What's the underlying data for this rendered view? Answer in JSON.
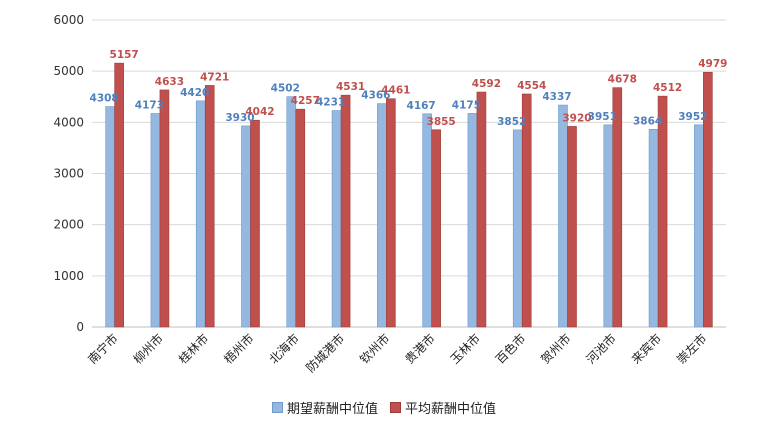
{
  "chart_data": {
    "type": "bar",
    "categories": [
      "南宁市",
      "柳州市",
      "桂林市",
      "梧州市",
      "北海市",
      "防城港市",
      "钦州市",
      "贵港市",
      "玉林市",
      "百色市",
      "贺州市",
      "河池市",
      "来宾市",
      "崇左市"
    ],
    "series": [
      {
        "name": "期望薪酬中位值",
        "color": "#95b8e0",
        "values": [
          4308,
          4173,
          4420,
          3930,
          4502,
          4231,
          4366,
          4167,
          4175,
          3852,
          4337,
          3951,
          3864,
          3952
        ]
      },
      {
        "name": "平均薪酬中位值",
        "color": "#c0504d",
        "values": [
          5157,
          4633,
          4721,
          4042,
          4257,
          4531,
          4461,
          3855,
          4592,
          4554,
          3920,
          4678,
          4512,
          4979
        ]
      }
    ],
    "ylim": [
      0,
      6000
    ],
    "yticks": [
      0,
      1000,
      2000,
      3000,
      4000,
      5000,
      6000
    ],
    "grid": true,
    "legend_position": "bottom",
    "label_colors": [
      "#4e81bd",
      "#c0504d"
    ]
  }
}
